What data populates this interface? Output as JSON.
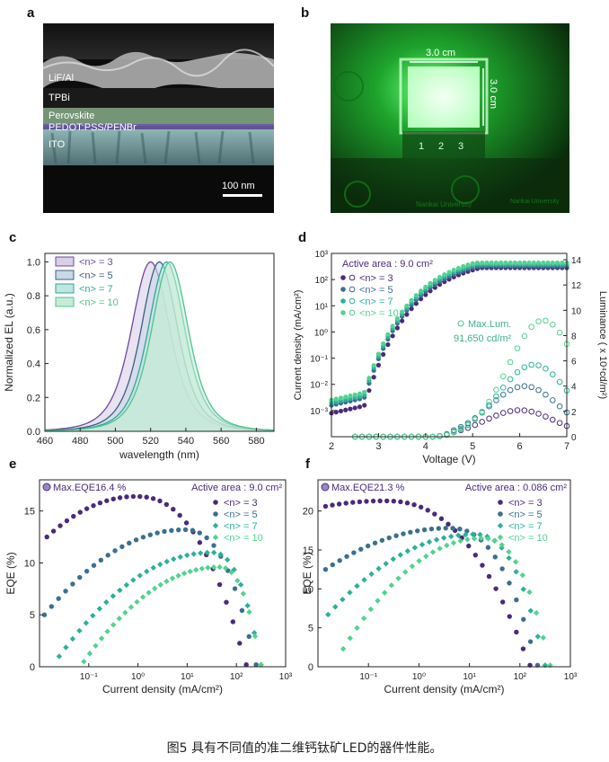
{
  "caption": "图5 具有不同值的准二维钙钛矿LED的器件性能。",
  "panels": {
    "a": {
      "label": "a",
      "layers": [
        "LiF/Al",
        "TPBi",
        "Perovskite",
        "PEDOT:PSS/PFNBr",
        "ITO"
      ],
      "scalebar": "100 nm"
    },
    "b": {
      "label": "b",
      "width_label": "3.0 cm",
      "height_label": "3.0 cm",
      "pixel_numbers": [
        "1",
        "2",
        "3"
      ],
      "university": "Nankai University",
      "university_short": "Nankai University"
    },
    "c": {
      "label": "c"
    },
    "d": {
      "label": "d"
    },
    "e": {
      "label": "e"
    },
    "f": {
      "label": "f"
    }
  },
  "colors": {
    "n3": "#4b2a7c",
    "n5": "#3b6f92",
    "n7": "#2bb19a",
    "n10": "#52d38e",
    "green_bg": "#0c3b10",
    "led": "#c8ffd0"
  },
  "chart_data": [
    {
      "id": "c",
      "type": "area",
      "xlabel": "wavelength (nm)",
      "ylabel": "Normalized EL (a.u.)",
      "xlim": [
        460,
        590
      ],
      "ylim": [
        0,
        1.05
      ],
      "xticks": [
        460,
        480,
        500,
        520,
        540,
        560,
        580
      ],
      "yticks": [
        0.0,
        0.2,
        0.4,
        0.6,
        0.8,
        1.0
      ],
      "ytick_labels": [
        "0.0",
        "0.2",
        "0.4",
        "0.6",
        "0.8",
        "1.0"
      ],
      "series": [
        {
          "name": "<n> = 3",
          "peak": 520,
          "fwhm": 22,
          "color": "#6b4a9a",
          "fill": "#d8cfe8"
        },
        {
          "name": "<n> = 5",
          "peak": 525,
          "fwhm": 21,
          "color": "#3b5f86",
          "fill": "#c9d8e6"
        },
        {
          "name": "<n> = 7",
          "peak": 529,
          "fwhm": 21,
          "color": "#2ea79a",
          "fill": "#bfe6df"
        },
        {
          "name": "<n> = 10",
          "peak": 531,
          "fwhm": 21,
          "color": "#4cc58c",
          "fill": "#c6ecd6"
        }
      ]
    },
    {
      "id": "d",
      "type": "scatter",
      "xlabel": "Voltage (V)",
      "ylabel": "Current density (mA/cm²)",
      "y2label": "Luminance ( x 10⁴cd/m²)",
      "xlim": [
        2,
        7
      ],
      "ylim_log": [
        -4,
        3
      ],
      "y2lim": [
        0,
        14.5
      ],
      "xticks": [
        2,
        3,
        4,
        5,
        6,
        7
      ],
      "yticks_log": [
        -3,
        -2,
        -1,
        0,
        1,
        2,
        3
      ],
      "ytick_labels": [
        "10⁻³",
        "10⁻²",
        "10⁻¹",
        "10⁰",
        "10¹",
        "10²",
        "10³"
      ],
      "y2ticks": [
        0,
        2,
        4,
        6,
        8,
        10,
        12,
        14
      ],
      "annotation_area": "Active area : 9.0 cm²",
      "annotation_max_title": "Max.Lum.",
      "annotation_max_value": "91,650 cd/m²",
      "series": [
        {
          "name": "<n> = 3",
          "color": "#4b2a7c",
          "j_start": -3.1,
          "lum_peak": 2.1,
          "lum_peak_v": 6.0
        },
        {
          "name": "<n> = 5",
          "color": "#3b6f92",
          "j_start": -2.8,
          "lum_peak": 4.0,
          "lum_peak_v": 6.1
        },
        {
          "name": "<n> = 7",
          "color": "#2bb19a",
          "j_start": -2.7,
          "lum_peak": 5.7,
          "lum_peak_v": 6.3
        },
        {
          "name": "<n> = 10",
          "color": "#52d38e",
          "j_start": -2.6,
          "lum_peak": 9.2,
          "lum_peak_v": 6.5
        }
      ]
    },
    {
      "id": "e",
      "type": "scatter",
      "xlabel": "Current density (mA/cm²)",
      "ylabel": "EQE (%)",
      "xlim_log": [
        -2,
        3
      ],
      "ylim": [
        0,
        18
      ],
      "xticks_log": [
        -1,
        0,
        1,
        2,
        3
      ],
      "xtick_labels": [
        "10⁻¹",
        "10⁰",
        "10¹",
        "10²",
        "10³"
      ],
      "yticks": [
        0,
        5,
        10,
        15
      ],
      "annotation_max": "Max.EQE16.4 %",
      "annotation_area": "Active area : 9.0 cm²",
      "series": [
        {
          "name": "<n> = 3",
          "color": "#4b2a7c",
          "marker": "circle",
          "peak": 16.4,
          "peak_logj": -0.05,
          "start_logj": -1.85,
          "end_logj": 2.2,
          "start_eqe": 12.5
        },
        {
          "name": "<n> = 5",
          "color": "#3b6f92",
          "marker": "circle",
          "peak": 13.2,
          "peak_logj": 0.95,
          "start_logj": -1.9,
          "end_logj": 2.4,
          "start_eqe": 5.0
        },
        {
          "name": "<n> = 7",
          "color": "#2bb19a",
          "marker": "diamond",
          "peak": 11.0,
          "peak_logj": 1.5,
          "start_logj": -1.6,
          "end_logj": 2.5,
          "start_eqe": 1.0
        },
        {
          "name": "<n> = 10",
          "color": "#52d38e",
          "marker": "diamond",
          "peak": 9.6,
          "peak_logj": 1.65,
          "start_logj": -1.1,
          "end_logj": 2.5,
          "start_eqe": 0.5
        }
      ]
    },
    {
      "id": "f",
      "type": "scatter",
      "xlabel": "Current density (mA/cm²)",
      "ylabel": "EQE (%)",
      "xlim_log": [
        -2,
        3
      ],
      "ylim": [
        0,
        24
      ],
      "xticks_log": [
        -1,
        0,
        1,
        2,
        3
      ],
      "xtick_labels": [
        "10⁻¹",
        "10⁰",
        "10¹",
        "10²",
        "10³"
      ],
      "yticks": [
        0,
        5,
        10,
        15,
        20
      ],
      "annotation_max": "Max.EQE21.3 %",
      "annotation_area": "Active area : 0.086 cm²",
      "series": [
        {
          "name": "<n> = 3",
          "color": "#4b2a7c",
          "marker": "circle",
          "peak": 21.3,
          "peak_logj": -0.7,
          "start_logj": -1.85,
          "end_logj": 2.2,
          "start_eqe": 20.6
        },
        {
          "name": "<n> = 5",
          "color": "#3b6f92",
          "marker": "circle",
          "peak": 17.8,
          "peak_logj": 0.6,
          "start_logj": -1.85,
          "end_logj": 2.35,
          "start_eqe": 12.5
        },
        {
          "name": "<n> = 7",
          "color": "#2bb19a",
          "marker": "diamond",
          "peak": 17.0,
          "peak_logj": 1.1,
          "start_logj": -1.8,
          "end_logj": 2.5,
          "start_eqe": 6.7
        },
        {
          "name": "<n> = 10",
          "color": "#52d38e",
          "marker": "diamond",
          "peak": 16.5,
          "peak_logj": 1.25,
          "start_logj": -1.5,
          "end_logj": 2.6,
          "start_eqe": 2.3
        }
      ]
    }
  ]
}
